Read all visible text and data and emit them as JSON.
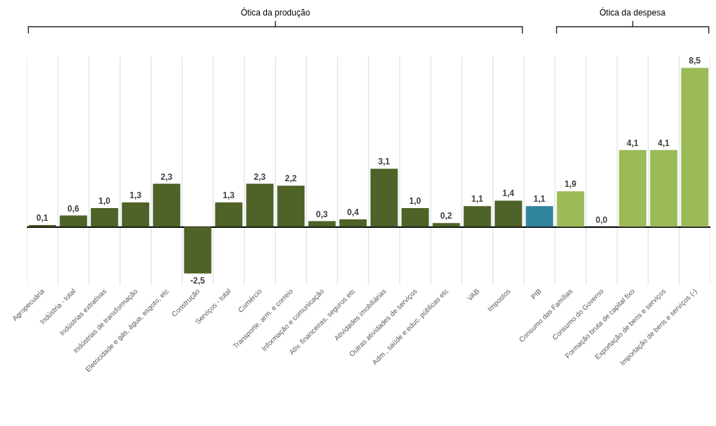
{
  "chart_data": {
    "type": "bar",
    "categories": [
      "Agropecuária",
      "Indústria - total",
      "Indústrias extrativas",
      "Indústrias de transformação",
      "Eletricidade e gás, água, esgoto, etc",
      "Construção",
      "Serviços - total",
      "Comércio",
      "Transporte, arm. e correio",
      "Informação e comunicação",
      "Ativ. financeiras, seguros etc",
      "Atividades imobiliárias",
      "Outras atividades de serviços",
      "Adm., saúde e educ. públicas etc",
      "VAB",
      "Impostos",
      "PIB",
      "Consumo das Famílias",
      "Consumo do Governo",
      "Formação bruta de capital fixo",
      "Exportação de bens e serviços",
      "Importação de bens e serviços (-)"
    ],
    "values": [
      0.1,
      0.6,
      1.0,
      1.3,
      2.3,
      -2.5,
      1.3,
      2.3,
      2.2,
      0.3,
      0.4,
      3.1,
      1.0,
      0.2,
      1.1,
      1.4,
      1.1,
      1.9,
      0.0,
      4.1,
      4.1,
      8.5
    ],
    "value_labels": [
      "0,1",
      "0,6",
      "1,0",
      "1,3",
      "2,3",
      "-2,5",
      "1,3",
      "2,3",
      "2,2",
      "0,3",
      "0,4",
      "3,1",
      "1,0",
      "0,2",
      "1,1",
      "1,4",
      "1,1",
      "1,9",
      "0,0",
      "4,1",
      "4,1",
      "8,5"
    ],
    "colors": [
      "#4f6228",
      "#4f6228",
      "#4f6228",
      "#4f6228",
      "#4f6228",
      "#4f6228",
      "#4f6228",
      "#4f6228",
      "#4f6228",
      "#4f6228",
      "#4f6228",
      "#4f6228",
      "#4f6228",
      "#4f6228",
      "#4f6228",
      "#4f6228",
      "#31859c",
      "#9bbb59",
      "#9bbb59",
      "#9bbb59",
      "#9bbb59",
      "#9bbb59"
    ],
    "annotations": [
      "Ótica da produção",
      "Ótica da despesa"
    ],
    "grid": "x",
    "legend": false
  }
}
